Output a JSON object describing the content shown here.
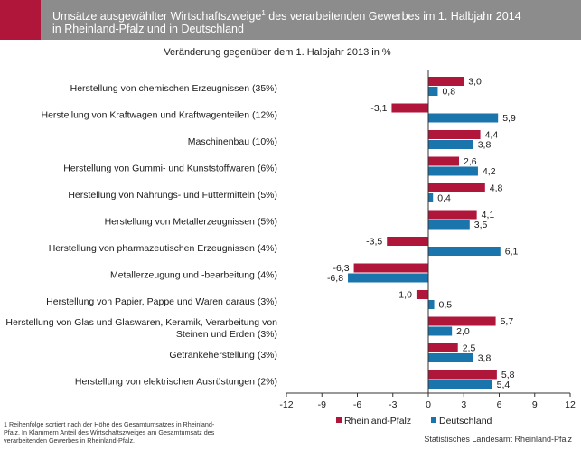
{
  "header": {
    "title_part1": "Umsätze ausgewählter Wirtschaftszweige",
    "title_sup": "1",
    "title_part2": " des verarbeitenden Gewerbes im 1. Halbjahr 2014\nin Rheinland-Pfalz und in Deutschland",
    "accent_color": "#b0153a",
    "background_color": "#8c8c8c"
  },
  "chart_data": {
    "type": "bar",
    "orientation": "horizontal",
    "title": "Veränderung gegenüber dem 1. Halbjahr 2013  in %",
    "categories": [
      "Herstellung von chemischen Erzeugnissen (35%)",
      "Herstellung von Kraftwagen und Kraftwagenteilen (12%)",
      "Maschinenbau (10%)",
      "Herstellung von Gummi- und Kunststoffwaren (6%)",
      "Herstellung von Nahrungs- und Futtermitteln (5%)",
      "Herstellung von Metallerzeugnissen (5%)",
      "Herstellung von pharmazeutischen Erzeugnissen (4%)",
      "Metallerzeugung und -bearbeitung (4%)",
      "Herstellung von Papier, Pappe und Waren daraus (3%)",
      "Herstellung von Glas und Glaswaren, Keramik, Verarbeitung von\nSteinen und Erden (3%)",
      "Getränkeherstellung (3%)",
      "Herstellung von elektrischen Ausrüstungen (2%)"
    ],
    "series": [
      {
        "name": "Rheinland-Pfalz",
        "color": "#b0153a",
        "values": [
          3.0,
          -3.1,
          4.4,
          2.6,
          4.8,
          4.1,
          -3.5,
          -6.3,
          -1.0,
          5.7,
          2.5,
          5.8
        ],
        "labels": [
          "3,0",
          "-3,1",
          "4,4",
          "2,6",
          "4,8",
          "4,1",
          "-3,5",
          "-6,3",
          "-1,0",
          "5,7",
          "2,5",
          "5,8"
        ]
      },
      {
        "name": "Deutschland",
        "color": "#1a75ad",
        "values": [
          0.8,
          5.9,
          3.8,
          4.2,
          0.4,
          3.5,
          6.1,
          -6.8,
          0.5,
          2.0,
          3.8,
          5.4
        ],
        "labels": [
          "0,8",
          "5,9",
          "3,8",
          "4,2",
          "0,4",
          "3,5",
          "6,1",
          "-6,8",
          "0,5",
          "2,0",
          "3,8",
          "5,4"
        ]
      }
    ],
    "xlim": [
      -12,
      12
    ],
    "xticks": [
      -12,
      -9,
      -6,
      -3,
      0,
      3,
      6,
      9,
      12
    ],
    "xtick_labels": [
      "-12",
      "-9",
      "-6",
      "-3",
      "0",
      "3",
      "6",
      "9",
      "12"
    ],
    "grid": false,
    "legend_position": "bottom-right"
  },
  "footnote": "1 Reihenfolge sortiert nach der Höhe des Gesamtumsatzes in Rheinland-Pfalz. In Klammern Anteil des Wirtschaftszweiges am Gesamtumsatz des verarbeitenden Gewerbes in Rheinland-Pfalz.",
  "source": "Statistisches Landesamt Rheinland-Pfalz"
}
